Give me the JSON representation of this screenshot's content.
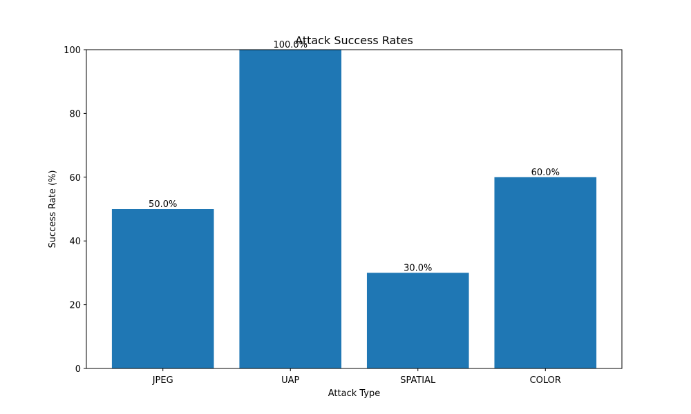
{
  "chart_data": {
    "type": "bar",
    "title": "Attack Success Rates",
    "xlabel": "Attack Type",
    "ylabel": "Success Rate (%)",
    "categories": [
      "JPEG",
      "UAP",
      "SPATIAL",
      "COLOR"
    ],
    "values": [
      50.0,
      100.0,
      30.0,
      60.0
    ],
    "data_labels": [
      "50.0%",
      "100.0%",
      "30.0%",
      "60.0%"
    ],
    "ylim": [
      0,
      100
    ],
    "yticks": [
      0,
      20,
      40,
      60,
      80,
      100
    ],
    "ytick_labels": [
      "0",
      "20",
      "40",
      "60",
      "80",
      "100"
    ],
    "grid": false,
    "legend": "none",
    "bar_color": "#1f77b4"
  }
}
